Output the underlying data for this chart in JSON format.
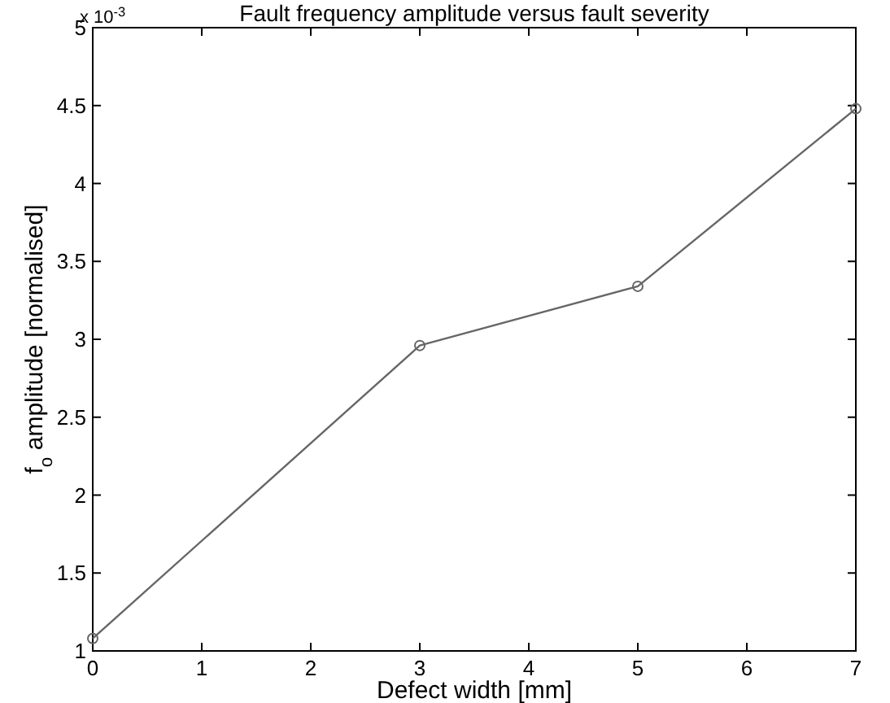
{
  "chart_data": {
    "type": "line",
    "title": "Fault frequency amplitude versus fault severity",
    "xlabel": "Defect width [mm]",
    "ylabel": "f$_{o}$ amplitude [normalised]",
    "x": [
      0,
      3,
      5,
      7
    ],
    "series": [
      {
        "color": "#666666",
        "values": [
          1.08,
          2.96,
          3.34,
          4.48
        ]
      }
    ],
    "xlim": [
      0,
      7
    ],
    "xticks": [
      0,
      1,
      2,
      3,
      4,
      5,
      6,
      7
    ],
    "ylim": [
      1,
      5
    ],
    "yticks": [
      1,
      {
        "value": 1.5,
        "label": "1.5"
      },
      2,
      {
        "value": 2.5,
        "label": "2.5"
      },
      3,
      {
        "value": 3.5,
        "label": "3.5"
      },
      4,
      {
        "value": 4.5,
        "label": "4.5"
      },
      5
    ],
    "annotations": [
      "x 10$^{-3}$"
    ],
    "marker": "circle",
    "line_style": "solid"
  }
}
